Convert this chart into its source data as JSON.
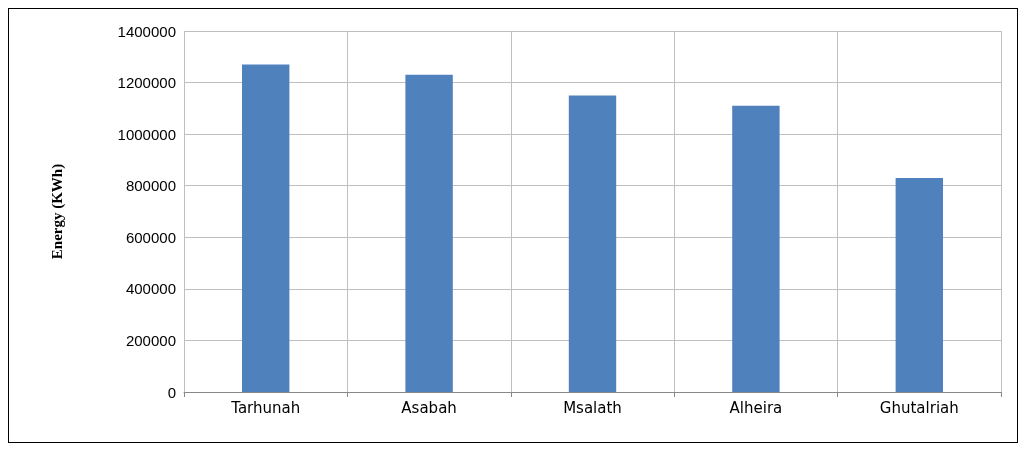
{
  "chart_data": {
    "type": "bar",
    "ylabel": "Energy (KWh)",
    "categories": [
      "Tarhunah",
      "Asabah",
      "Msalath",
      "Alheira",
      "Ghutalriah"
    ],
    "values": [
      1270000,
      1230000,
      1150000,
      1110000,
      830000
    ],
    "color": "#4f81bd",
    "ylim": [
      0,
      1400000
    ],
    "yticks": [
      0,
      200000,
      400000,
      600000,
      800000,
      1000000,
      1200000,
      1400000
    ],
    "grid": true
  }
}
